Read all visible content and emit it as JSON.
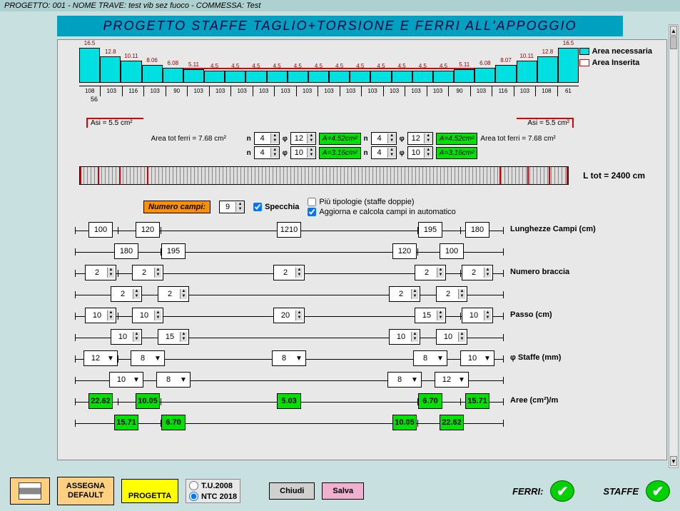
{
  "window_title": "PROGETTO: 001 - NOME TRAVE: test vib sez fuoco - COMMESSA: Test",
  "banner": "PROGETTO   STAFFE  TAGLIO+TORSIONE   E   FERRI  ALL'APPOGGIO",
  "chart": {
    "legend_necessaria": "Area necessaria",
    "legend_inserita": "Area Inserita",
    "bars": [
      {
        "v": "16.5",
        "h": 48
      },
      {
        "v": "12.8",
        "h": 36
      },
      {
        "v": "10.11",
        "h": 30
      },
      {
        "v": "8.06",
        "h": 24
      },
      {
        "v": "6.08",
        "h": 20
      },
      {
        "v": "5.11",
        "h": 18
      },
      {
        "v": "4.5",
        "h": 16
      },
      {
        "v": "4.5",
        "h": 16
      },
      {
        "v": "4.5",
        "h": 16
      },
      {
        "v": "4.5",
        "h": 16
      },
      {
        "v": "4.5",
        "h": 16
      },
      {
        "v": "4.5",
        "h": 16
      },
      {
        "v": "4.5",
        "h": 16
      },
      {
        "v": "4.5",
        "h": 16
      },
      {
        "v": "4.5",
        "h": 16
      },
      {
        "v": "4.5",
        "h": 16
      },
      {
        "v": "4.5",
        "h": 16
      },
      {
        "v": "4.5",
        "h": 16
      },
      {
        "v": "5.11",
        "h": 18
      },
      {
        "v": "6.08",
        "h": 20
      },
      {
        "v": "8.07",
        "h": 24
      },
      {
        "v": "10.11",
        "h": 30
      },
      {
        "v": "12.8",
        "h": 36
      },
      {
        "v": "16.5",
        "h": 48
      }
    ],
    "ticks": [
      "108",
      "103",
      "116",
      "103",
      "90",
      "103",
      "103",
      "103",
      "103",
      "103",
      "103",
      "103",
      "103",
      "103",
      "103",
      "103",
      "103",
      "90",
      "103",
      "116",
      "103",
      "108",
      "61"
    ],
    "end_label": "56"
  },
  "asi": {
    "left": "Asi =  5.5 cm²",
    "right": "Asi =  5.5 cm²"
  },
  "ferri": {
    "area_tot_left": "Area tot ferri = 7.68 cm²",
    "area_tot_right": "Area tot ferri = 7.68 cm²",
    "rows": [
      {
        "n1": "4",
        "d1": "12",
        "a1": "A=4.52cm²",
        "n2": "4",
        "d2": "12",
        "a2": "A=4.52cm²"
      },
      {
        "n1": "4",
        "d1": "10",
        "a1": "A=3.16cm²",
        "n2": "4",
        "d2": "10",
        "a2": "A=3.16cm²"
      }
    ]
  },
  "ltot": "L tot =  2400 cm",
  "controls": {
    "numero_campi_label": "Numero campi:",
    "numero_campi_value": "9",
    "specchia": "Specchia",
    "piu_tipologie": "Più tipologie (staffe doppie)",
    "aggiorna": "Aggiorna e calcola campi in automatico"
  },
  "slider_labels": {
    "lunghezze": "Lunghezze Campi (cm)",
    "braccia": "Numero braccia",
    "passo": "Passo  (cm)",
    "staffe": "φ Staffe  (mm)",
    "aree": "Aree  (cm²)/m"
  },
  "sliders": {
    "lunghezze_top": [
      {
        "p": 6,
        "v": "100"
      },
      {
        "p": 17,
        "v": "120"
      },
      {
        "p": 50,
        "v": "1210"
      },
      {
        "p": 83,
        "v": "195"
      },
      {
        "p": 94,
        "v": "180"
      }
    ],
    "lunghezze_bot": [
      {
        "p": 12,
        "v": "180"
      },
      {
        "p": 23,
        "v": "195"
      },
      {
        "p": 77,
        "v": "120"
      },
      {
        "p": 88,
        "v": "100"
      }
    ],
    "braccia_top": [
      {
        "p": 6,
        "v": "2"
      },
      {
        "p": 17,
        "v": "2"
      },
      {
        "p": 50,
        "v": "2"
      },
      {
        "p": 83,
        "v": "2"
      },
      {
        "p": 94,
        "v": "2"
      }
    ],
    "braccia_bot": [
      {
        "p": 12,
        "v": "2"
      },
      {
        "p": 23,
        "v": "2"
      },
      {
        "p": 77,
        "v": "2"
      },
      {
        "p": 88,
        "v": "2"
      }
    ],
    "passo_top": [
      {
        "p": 6,
        "v": "10"
      },
      {
        "p": 17,
        "v": "10"
      },
      {
        "p": 50,
        "v": "20"
      },
      {
        "p": 83,
        "v": "15"
      },
      {
        "p": 94,
        "v": "10"
      }
    ],
    "passo_bot": [
      {
        "p": 12,
        "v": "10"
      },
      {
        "p": 23,
        "v": "15"
      },
      {
        "p": 77,
        "v": "10"
      },
      {
        "p": 88,
        "v": "10"
      }
    ],
    "staffe_top": [
      {
        "p": 6,
        "v": "12"
      },
      {
        "p": 17,
        "v": "8"
      },
      {
        "p": 50,
        "v": "8"
      },
      {
        "p": 83,
        "v": "8"
      },
      {
        "p": 94,
        "v": "10"
      }
    ],
    "staffe_bot": [
      {
        "p": 12,
        "v": "10"
      },
      {
        "p": 23,
        "v": "8"
      },
      {
        "p": 77,
        "v": "8"
      },
      {
        "p": 88,
        "v": "12"
      }
    ],
    "aree_top": [
      {
        "p": 6,
        "v": "22.62"
      },
      {
        "p": 17,
        "v": "10.05"
      },
      {
        "p": 50,
        "v": "5.03"
      },
      {
        "p": 83,
        "v": "6.70"
      },
      {
        "p": 94,
        "v": "15.71"
      }
    ],
    "aree_bot": [
      {
        "p": 12,
        "v": "15.71"
      },
      {
        "p": 23,
        "v": "6.70"
      },
      {
        "p": 77,
        "v": "10.05"
      },
      {
        "p": 88,
        "v": "22.62"
      }
    ]
  },
  "footer": {
    "assegna": "ASSEGNA DEFAULT",
    "progetta": "PROGETTA",
    "tu2008": "T.U.2008",
    "ntc2018": "NTC 2018",
    "chiudi": "Chiudi",
    "salva": "Salva",
    "ferri": "FERRI:",
    "staffe": "STAFFE"
  }
}
